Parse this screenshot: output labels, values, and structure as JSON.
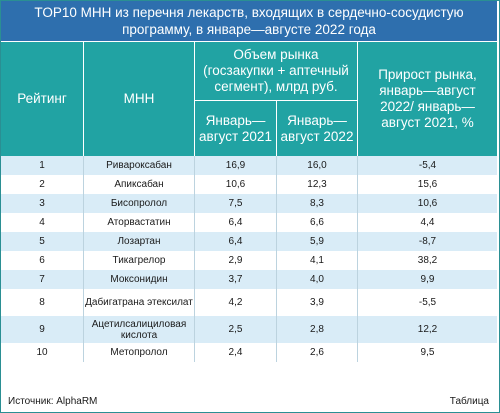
{
  "title": "TOP10 МНН из перечня лекарств, входящих в сердечно-сосудистую программу, в январе—августе 2022 года",
  "headers": {
    "rank": "Рейтинг",
    "mnn": "МНН",
    "market_volume": "Объем рынка (госзакупки + аптечный сегмент), млрд руб.",
    "period_2021": "Январь—август 2021",
    "period_2022": "Январь—август 2022",
    "growth": "Прирост рынка, январь—август 2022/ январь—август 2021, %"
  },
  "rows": [
    {
      "rank": "1",
      "mnn": "Ривароксабан",
      "v2021": "16,9",
      "v2022": "16,0",
      "growth": "-5,4"
    },
    {
      "rank": "2",
      "mnn": "Апиксабан",
      "v2021": "10,6",
      "v2022": "12,3",
      "growth": "15,6"
    },
    {
      "rank": "3",
      "mnn": "Бисопролол",
      "v2021": "7,5",
      "v2022": "8,3",
      "growth": "10,6"
    },
    {
      "rank": "4",
      "mnn": "Аторвастатин",
      "v2021": "6,4",
      "v2022": "6,6",
      "growth": "4,4"
    },
    {
      "rank": "5",
      "mnn": "Лозартан",
      "v2021": "6,4",
      "v2022": "5,9",
      "growth": "-8,7"
    },
    {
      "rank": "6",
      "mnn": "Тикагрелор",
      "v2021": "2,9",
      "v2022": "4,1",
      "growth": "38,2"
    },
    {
      "rank": "7",
      "mnn": "Моксонидин",
      "v2021": "3,7",
      "v2022": "4,0",
      "growth": "9,9"
    },
    {
      "rank": "8",
      "mnn": "Дабигатрана этексилат",
      "v2021": "4,2",
      "v2022": "3,9",
      "growth": "-5,5"
    },
    {
      "rank": "9",
      "mnn": "Ацетилсалициловая кислота",
      "v2021": "2,5",
      "v2022": "2,8",
      "growth": "12,2"
    },
    {
      "rank": "10",
      "mnn": "Метопролол",
      "v2021": "2,4",
      "v2022": "2,6",
      "growth": "9,5"
    }
  ],
  "footer": {
    "source": "Источник: AlphaRM",
    "label": "Таблица"
  },
  "colors": {
    "title_bg": "#2e6fae",
    "header_bg": "#21a3a3",
    "row_alt_bg": "#d9ecf7"
  }
}
